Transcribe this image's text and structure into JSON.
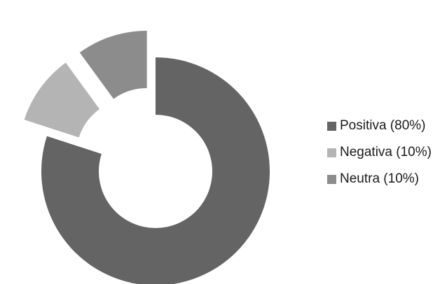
{
  "chart_data": {
    "type": "pie",
    "variant": "donut",
    "title": "",
    "slices": [
      {
        "label": "Positiva (80%)",
        "value": 80,
        "color": "#646464",
        "exploded": false
      },
      {
        "label": "Negativa (10%)",
        "value": 10,
        "color": "#b4b4b4",
        "exploded": true
      },
      {
        "label": "Neutra (10%)",
        "value": 10,
        "color": "#8c8c8c",
        "exploded": true
      }
    ],
    "legend": "right"
  }
}
